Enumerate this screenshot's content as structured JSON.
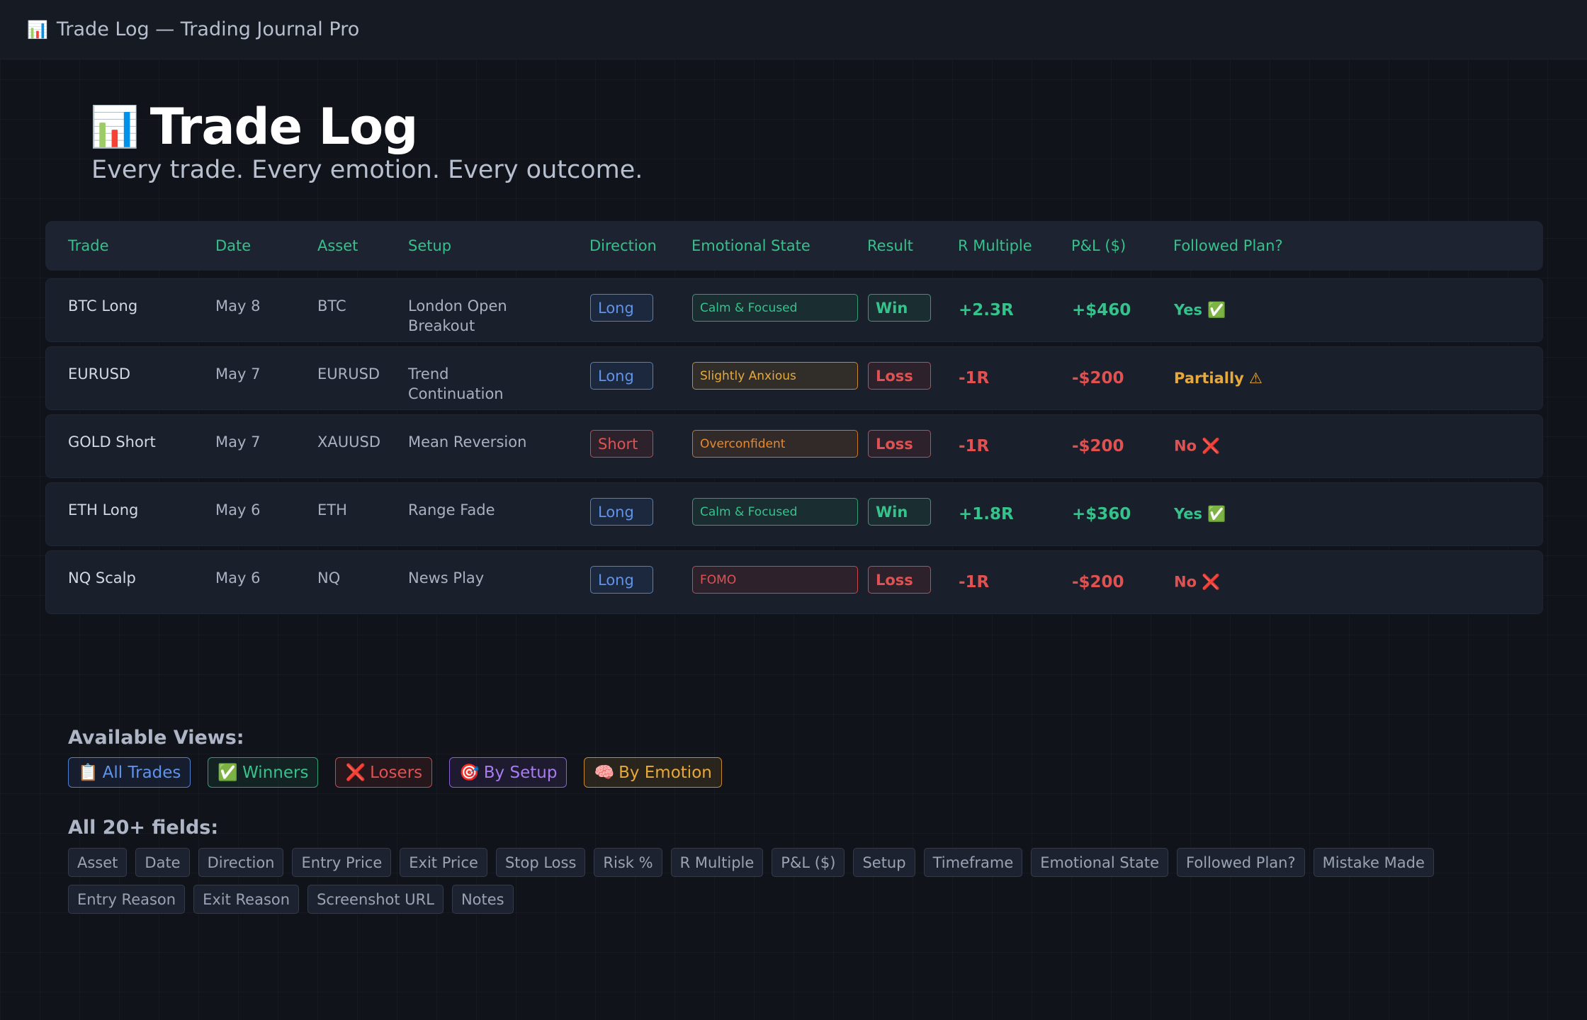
{
  "window": {
    "icon": "📊",
    "title": "Trade Log — Trading Journal Pro"
  },
  "page": {
    "icon": "📊",
    "title": "Trade Log",
    "subtitle": "Every trade. Every emotion. Every outcome."
  },
  "table": {
    "columns": [
      "Trade",
      "Date",
      "Asset",
      "Setup",
      "Direction",
      "Emotional State",
      "Result",
      "R Multiple",
      "P&L ($)",
      "Followed Plan?"
    ],
    "rows": [
      {
        "trade": "BTC Long",
        "date": "May 8",
        "asset": "BTC",
        "setup": "London Open Breakout",
        "direction": "Long",
        "emotion": "Calm & Focused",
        "result": "Win",
        "r": "+2.3R",
        "pnl": "+$460",
        "plan": "Yes ✅"
      },
      {
        "trade": "EURUSD",
        "date": "May 7",
        "asset": "EURUSD",
        "setup": "Trend Continuation",
        "direction": "Long",
        "emotion": "Slightly Anxious",
        "result": "Loss",
        "r": "-1R",
        "pnl": "-$200",
        "plan": "Partially ⚠"
      },
      {
        "trade": "GOLD Short",
        "date": "May 7",
        "asset": "XAUUSD",
        "setup": "Mean Reversion",
        "direction": "Short",
        "emotion": "Overconfident",
        "result": "Loss",
        "r": "-1R",
        "pnl": "-$200",
        "plan": "No ❌"
      },
      {
        "trade": "ETH Long",
        "date": "May 6",
        "asset": "ETH",
        "setup": "Range Fade",
        "direction": "Long",
        "emotion": "Calm & Focused",
        "result": "Win",
        "r": "+1.8R",
        "pnl": "+$360",
        "plan": "Yes ✅"
      },
      {
        "trade": "NQ Scalp",
        "date": "May 6",
        "asset": "NQ",
        "setup": "News Play",
        "direction": "Long",
        "emotion": "FOMO",
        "result": "Loss",
        "r": "-1R",
        "pnl": "-$200",
        "plan": "No ❌"
      }
    ]
  },
  "views": {
    "label": "Available Views:",
    "items": [
      {
        "icon": "📋",
        "label": "All Trades"
      },
      {
        "icon": "✅",
        "label": "Winners"
      },
      {
        "icon": "❌",
        "label": "Losers"
      },
      {
        "icon": "🎯",
        "label": "By Setup"
      },
      {
        "icon": "🧠",
        "label": "By Emotion"
      }
    ]
  },
  "fields": {
    "label": "All 20+ fields:",
    "items": [
      "Asset",
      "Date",
      "Direction",
      "Entry Price",
      "Exit Price",
      "Stop Loss",
      "Risk %",
      "R Multiple",
      "P&L ($)",
      "Setup",
      "Timeframe",
      "Emotional State",
      "Followed Plan?",
      "Mistake Made",
      "Entry Reason",
      "Exit Reason",
      "Screenshot URL",
      "Notes"
    ]
  },
  "colors": {
    "accent_green": "#36c28b",
    "loss_red": "#e05252",
    "long_blue": "#5f94ea",
    "warn_amber": "#e7a93c",
    "overconfident_orange": "#e88a2c",
    "setup_purple": "#a77cf0"
  }
}
